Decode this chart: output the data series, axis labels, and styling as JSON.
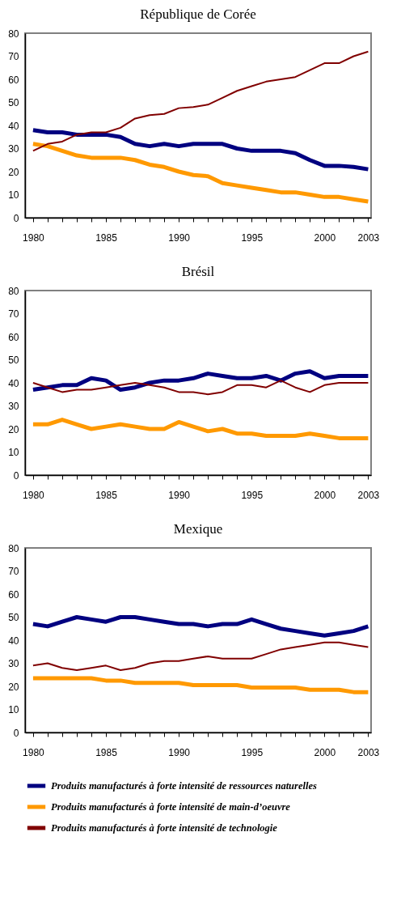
{
  "chart_data": [
    {
      "type": "line",
      "title": "République de Corée",
      "x": [
        1980,
        1981,
        1982,
        1983,
        1984,
        1985,
        1986,
        1987,
        1988,
        1989,
        1990,
        1991,
        1992,
        1993,
        1994,
        1995,
        1996,
        1997,
        1998,
        1999,
        2000,
        2001,
        2002,
        2003
      ],
      "xlim": [
        1979.45,
        2003.2
      ],
      "xticks": [
        1980,
        {
          "value": 1981,
          "label": null
        },
        {
          "value": 1982,
          "label": null
        },
        {
          "value": 1983,
          "label": null
        },
        {
          "value": 1984,
          "label": null
        },
        1985,
        {
          "value": 1986,
          "label": null
        },
        {
          "value": 1987,
          "label": null
        },
        {
          "value": 1988,
          "label": null
        },
        {
          "value": 1989,
          "label": null
        },
        1990,
        {
          "value": 1991,
          "label": null
        },
        {
          "value": 1992,
          "label": null
        },
        {
          "value": 1993,
          "label": null
        },
        {
          "value": 1994,
          "label": null
        },
        1995,
        {
          "value": 1996,
          "label": null
        },
        {
          "value": 1997,
          "label": null
        },
        {
          "value": 1998,
          "label": null
        },
        {
          "value": 1999,
          "label": null
        },
        2000,
        {
          "value": 2001,
          "label": null
        },
        {
          "value": 2002,
          "label": null
        },
        2003
      ],
      "ylim": [
        0,
        80
      ],
      "yticks": [
        0,
        10,
        20,
        30,
        40,
        50,
        60,
        70,
        80
      ],
      "grid": false,
      "series": [
        {
          "color": "#000080",
          "values": [
            38,
            37,
            37,
            36,
            36,
            36,
            35,
            32,
            31,
            32,
            31,
            32,
            32,
            32,
            30,
            29,
            29,
            29,
            28,
            25,
            22.5,
            22.5,
            22,
            21
          ]
        },
        {
          "color": "#ff9900",
          "values": [
            32,
            31,
            29,
            27,
            26,
            26,
            26,
            25,
            23,
            22,
            20,
            18.5,
            18,
            15,
            14,
            13,
            12,
            11,
            11,
            10,
            9,
            9,
            8,
            7
          ]
        },
        {
          "color": "#800000",
          "values": [
            29,
            32,
            33,
            36,
            37,
            37,
            39,
            43,
            44.5,
            45,
            47.5,
            48,
            49,
            52,
            55,
            57,
            59,
            60,
            61,
            64,
            67,
            67,
            70,
            72
          ]
        }
      ]
    },
    {
      "type": "line",
      "title": "Brésil",
      "x": [
        1980,
        1981,
        1982,
        1983,
        1984,
        1985,
        1986,
        1987,
        1988,
        1989,
        1990,
        1991,
        1992,
        1993,
        1994,
        1995,
        1996,
        1997,
        1998,
        1999,
        2000,
        2001,
        2002,
        2003
      ],
      "xlim": [
        1979.45,
        2003.2
      ],
      "xticks": [
        1980,
        {
          "value": 1981,
          "label": null
        },
        {
          "value": 1982,
          "label": null
        },
        {
          "value": 1983,
          "label": null
        },
        {
          "value": 1984,
          "label": null
        },
        1985,
        {
          "value": 1986,
          "label": null
        },
        {
          "value": 1987,
          "label": null
        },
        {
          "value": 1988,
          "label": null
        },
        {
          "value": 1989,
          "label": null
        },
        1990,
        {
          "value": 1991,
          "label": null
        },
        {
          "value": 1992,
          "label": null
        },
        {
          "value": 1993,
          "label": null
        },
        {
          "value": 1994,
          "label": null
        },
        1995,
        {
          "value": 1996,
          "label": null
        },
        {
          "value": 1997,
          "label": null
        },
        {
          "value": 1998,
          "label": null
        },
        {
          "value": 1999,
          "label": null
        },
        2000,
        {
          "value": 2001,
          "label": null
        },
        {
          "value": 2002,
          "label": null
        },
        2003
      ],
      "ylim": [
        0,
        80
      ],
      "yticks": [
        0,
        10,
        20,
        30,
        40,
        50,
        60,
        70,
        80
      ],
      "grid": false,
      "series": [
        {
          "color": "#000080",
          "values": [
            37,
            38,
            39,
            39,
            42,
            41,
            37,
            38,
            40,
            41,
            41,
            42,
            44,
            43,
            42,
            42,
            43,
            41,
            44,
            45,
            42,
            43,
            43,
            43
          ]
        },
        {
          "color": "#ff9900",
          "values": [
            22,
            22,
            24,
            22,
            20,
            21,
            22,
            21,
            20,
            20,
            23,
            21,
            19,
            20,
            18,
            18,
            17,
            17,
            17,
            18,
            17,
            16,
            16,
            16
          ]
        },
        {
          "color": "#800000",
          "values": [
            40,
            38,
            36,
            37,
            37,
            38,
            39,
            40,
            39,
            38,
            36,
            36,
            35,
            36,
            39,
            39,
            38,
            41,
            38,
            36,
            39,
            40,
            40,
            40
          ]
        }
      ]
    },
    {
      "type": "line",
      "title": "Mexique",
      "x": [
        1980,
        1981,
        1982,
        1983,
        1984,
        1985,
        1986,
        1987,
        1988,
        1989,
        1990,
        1991,
        1992,
        1993,
        1994,
        1995,
        1996,
        1997,
        1998,
        1999,
        2000,
        2001,
        2002,
        2003
      ],
      "xlim": [
        1979.45,
        2003.2
      ],
      "xticks": [
        1980,
        {
          "value": 1981,
          "label": null
        },
        {
          "value": 1982,
          "label": null
        },
        {
          "value": 1983,
          "label": null
        },
        {
          "value": 1984,
          "label": null
        },
        1985,
        {
          "value": 1986,
          "label": null
        },
        {
          "value": 1987,
          "label": null
        },
        {
          "value": 1988,
          "label": null
        },
        {
          "value": 1989,
          "label": null
        },
        1990,
        {
          "value": 1991,
          "label": null
        },
        {
          "value": 1992,
          "label": null
        },
        {
          "value": 1993,
          "label": null
        },
        {
          "value": 1994,
          "label": null
        },
        1995,
        {
          "value": 1996,
          "label": null
        },
        {
          "value": 1997,
          "label": null
        },
        {
          "value": 1998,
          "label": null
        },
        {
          "value": 1999,
          "label": null
        },
        2000,
        {
          "value": 2001,
          "label": null
        },
        {
          "value": 2002,
          "label": null
        },
        2003
      ],
      "ylim": [
        0,
        80
      ],
      "yticks": [
        0,
        10,
        20,
        30,
        40,
        50,
        60,
        70,
        80
      ],
      "grid": false,
      "legend": "bottom",
      "series": [
        {
          "name": "Produits manufacturés à forte intensité de ressources naturelles",
          "color": "#000080",
          "values": [
            47,
            46,
            48,
            50,
            49,
            48,
            50,
            50,
            49,
            48,
            47,
            47,
            46,
            47,
            47,
            49,
            47,
            45,
            44,
            43,
            42,
            43,
            44,
            46
          ]
        },
        {
          "name": "Produits manufacturés à forte intensité de main-d’oeuvre",
          "color": "#ff9900",
          "values": [
            23.5,
            23.5,
            23.5,
            23.5,
            23.5,
            22.5,
            22.5,
            21.5,
            21.5,
            21.5,
            21.5,
            20.5,
            20.5,
            20.5,
            20.5,
            19.5,
            19.5,
            19.5,
            19.5,
            18.5,
            18.5,
            18.5,
            17.5,
            17.5
          ]
        },
        {
          "name": "Produits manufacturés à forte intensité de technologie",
          "color": "#800000",
          "values": [
            29,
            30,
            28,
            27,
            28,
            29,
            27,
            28,
            30,
            31,
            31,
            32,
            33,
            32,
            32,
            32,
            34,
            36,
            37,
            38,
            39,
            39,
            38,
            37
          ]
        }
      ]
    }
  ]
}
